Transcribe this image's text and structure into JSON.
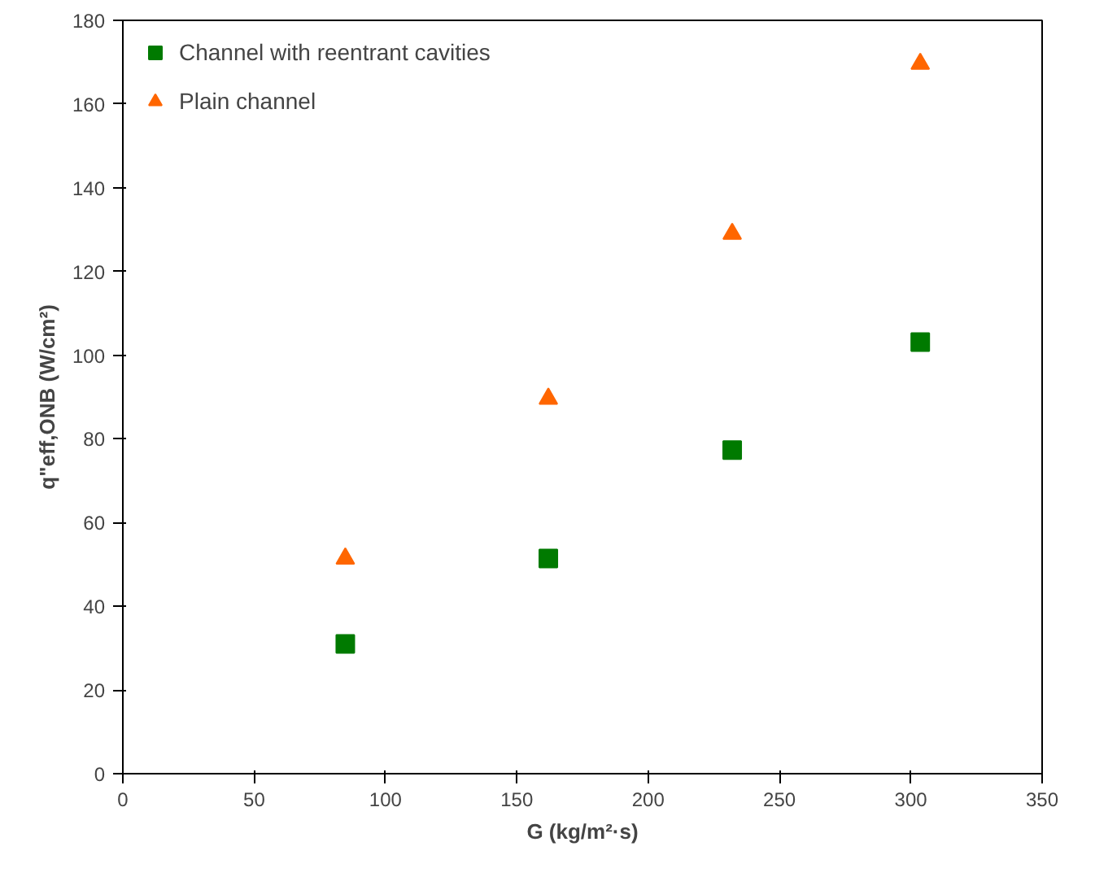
{
  "chart_data": {
    "type": "scatter",
    "xlabel": "G (kg/m²·s)",
    "ylabel": "q\"eff,ONB (W/cm²)",
    "xlim": [
      0,
      350
    ],
    "xticks": [
      0,
      50,
      100,
      150,
      200,
      250,
      300,
      350
    ],
    "ylim": [
      0,
      180
    ],
    "yticks": [
      0,
      20,
      40,
      60,
      80,
      100,
      120,
      140,
      160,
      180
    ],
    "grid": false,
    "legend": "top left",
    "series": [
      {
        "name": "Channel with reentrant cavities",
        "color": "#007a00",
        "marker": "square",
        "x": [
          84.7,
          162,
          232,
          303.6
        ],
        "values": [
          31,
          51.4,
          77.3,
          103.1
        ]
      },
      {
        "name": "Plain channel",
        "color": "#ff6600",
        "marker": "triangle",
        "x": [
          84.7,
          162,
          232,
          303.6
        ],
        "values": [
          51.4,
          89.6,
          129,
          169.6
        ]
      }
    ]
  }
}
